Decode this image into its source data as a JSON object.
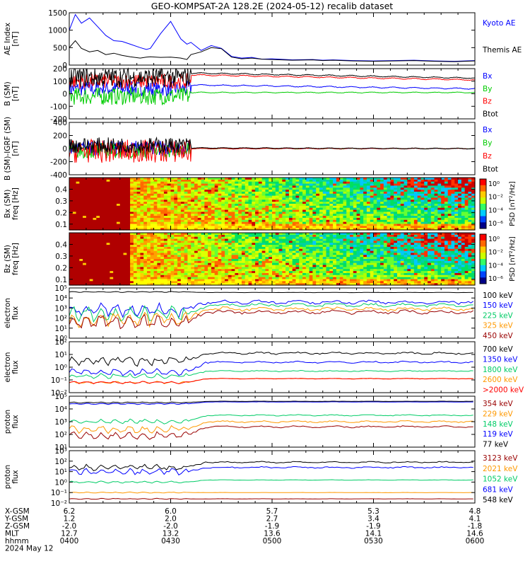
{
  "title": "GEO-KOMPSAT-2A 128.2E (2024-05-12) recalib dataset",
  "colors": {
    "black": "#000000",
    "blue": "#0000ff",
    "green": "#00cc00",
    "red": "#ff0000",
    "orange": "#ff9900",
    "darkred": "#990000",
    "seagreen": "#00cc66",
    "cyan": "#00aaff"
  },
  "chart_data": [
    {
      "type": "line",
      "id": "ae",
      "ylabel": [
        "AE Index",
        "[nT]"
      ],
      "ylim": [
        0,
        1500
      ],
      "ticks": [
        0,
        500,
        1000,
        1500
      ],
      "tick_labels": [
        "0",
        "500",
        "1000",
        "1500"
      ],
      "series": [
        {
          "name": "Kyoto AE",
          "color": "blue",
          "x": [
            0,
            3,
            6,
            10,
            14,
            18,
            22,
            26,
            30,
            35,
            38,
            40,
            45,
            50,
            55,
            58,
            60,
            65,
            70,
            75,
            80,
            85,
            90,
            95,
            100,
            110,
            120,
            125,
            130,
            140,
            150,
            160,
            170,
            180,
            190,
            200
          ],
          "y": [
            1000,
            1450,
            1200,
            1350,
            1100,
            850,
            700,
            680,
            600,
            500,
            450,
            480,
            900,
            1250,
            750,
            600,
            650,
            420,
            560,
            480,
            250,
            200,
            220,
            170,
            180,
            150,
            160,
            140,
            150,
            130,
            120,
            130,
            140,
            120,
            110,
            130
          ]
        },
        {
          "name": "Themis AE",
          "color": "black",
          "x": [
            0,
            3,
            6,
            10,
            14,
            18,
            22,
            26,
            30,
            35,
            38,
            40,
            45,
            50,
            55,
            58,
            60,
            65,
            70,
            75,
            80,
            85,
            90,
            95,
            100,
            110,
            120,
            125,
            130,
            140,
            150,
            160,
            170,
            180,
            190,
            200
          ],
          "y": [
            500,
            700,
            480,
            380,
            420,
            300,
            340,
            280,
            240,
            200,
            230,
            240,
            220,
            230,
            200,
            160,
            300,
            380,
            500,
            470,
            230,
            180,
            200,
            170,
            160,
            140,
            150,
            130,
            140,
            120,
            110,
            120,
            130,
            110,
            100,
            120
          ]
        }
      ],
      "legend_labels": [
        "Kyoto AE",
        "Themis AE"
      ]
    },
    {
      "type": "line",
      "id": "b_sm",
      "ylabel": [
        "B (SM)",
        "[nT]"
      ],
      "ylim": [
        -200,
        200
      ],
      "ticks": [
        -200,
        -100,
        0,
        100,
        200
      ],
      "tick_labels": [
        "-200",
        "-100",
        "0",
        "100",
        "200"
      ],
      "series": [
        {
          "name": "Bx",
          "color": "blue",
          "base_active": 40,
          "amp_active": 60,
          "base_quiet": 70,
          "end_quiet": 40,
          "noise_quiet": 4
        },
        {
          "name": "By",
          "color": "green",
          "base_active": -20,
          "amp_active": 70,
          "base_quiet": 10,
          "end_quiet": 10,
          "noise_quiet": 3
        },
        {
          "name": "Bz",
          "color": "red",
          "base_active": 100,
          "amp_active": 60,
          "base_quiet": 150,
          "end_quiet": 110,
          "noise_quiet": 4
        },
        {
          "name": "Btot",
          "color": "black",
          "base_active": 130,
          "amp_active": 80,
          "base_quiet": 165,
          "end_quiet": 125,
          "noise_quiet": 4
        }
      ],
      "legend_labels": [
        "Bx",
        "By",
        "Bz",
        "Btot"
      ]
    },
    {
      "type": "line",
      "id": "b_minus_igrf",
      "ylabel": [
        "B (SM)-IGRF (SM)",
        "[nT]"
      ],
      "ylim": [
        -400,
        400
      ],
      "ticks": [
        -400,
        -200,
        0,
        200,
        400
      ],
      "tick_labels": [
        "-400",
        "-200",
        "0",
        "200",
        "400"
      ],
      "series": [
        {
          "name": "Bx",
          "color": "blue",
          "base_active": 0,
          "amp_active": 120,
          "base_quiet": 0,
          "end_quiet": 0,
          "noise_quiet": 5
        },
        {
          "name": "By",
          "color": "green",
          "base_active": -30,
          "amp_active": 120,
          "base_quiet": 0,
          "end_quiet": 0,
          "noise_quiet": 5
        },
        {
          "name": "Bz",
          "color": "red",
          "base_active": -40,
          "amp_active": 180,
          "base_quiet": 0,
          "end_quiet": 0,
          "noise_quiet": 5
        },
        {
          "name": "Btot",
          "color": "black",
          "base_active": 50,
          "amp_active": 120,
          "base_quiet": 10,
          "end_quiet": 0,
          "noise_quiet": 5
        }
      ],
      "legend_labels": [
        "Bx",
        "By",
        "Bz",
        "Btot"
      ]
    },
    {
      "type": "heatmap",
      "id": "bx_psd",
      "ylabel": [
        "Bx (SM)",
        "freq [Hz]"
      ],
      "ylim": [
        0.05,
        0.5
      ],
      "ticks": [
        0.1,
        0.2,
        0.3,
        0.4
      ],
      "tick_labels": [
        "0.1",
        "0.2",
        "0.3",
        "0.4"
      ],
      "colorbar_label": "PSD [nT²/Hz]",
      "colorbar_ticks": [
        "10⁰",
        "10⁻²",
        "10⁻⁴",
        "10⁻⁶"
      ],
      "saturated_until": 30
    },
    {
      "type": "heatmap",
      "id": "bz_psd",
      "ylabel": [
        "Bz (SM)",
        "freq [Hz]"
      ],
      "ylim": [
        0.05,
        0.5
      ],
      "ticks": [
        0.1,
        0.2,
        0.3,
        0.4
      ],
      "tick_labels": [
        "0.1",
        "0.2",
        "0.3",
        "0.4"
      ],
      "colorbar_label": "PSD [nT²/Hz]",
      "colorbar_ticks": [
        "10⁰",
        "10⁻²",
        "10⁻⁴",
        "10⁻⁶"
      ],
      "saturated_until": 30
    },
    {
      "type": "line",
      "id": "electron_low",
      "ylabel": [
        "electron",
        "flux"
      ],
      "log": true,
      "ylim_exp": [
        0,
        5
      ],
      "tick_labels": [
        "10⁰",
        "10¹",
        "10²",
        "10³",
        "10⁴",
        "10⁵"
      ],
      "series": [
        {
          "name": "100 keV",
          "color": "black",
          "active": 4.6,
          "quiet": 4.55,
          "amp": 0.05
        },
        {
          "name": "150 keV",
          "color": "blue",
          "active": 2.8,
          "quiet": 3.6,
          "amp": 0.8
        },
        {
          "name": "225 keV",
          "color": "seagreen",
          "active": 2.4,
          "quiet": 3.3,
          "amp": 0.8
        },
        {
          "name": "325 keV",
          "color": "orange",
          "active": 1.9,
          "quiet": 2.9,
          "amp": 0.8
        },
        {
          "name": "450 keV",
          "color": "darkred",
          "active": 1.6,
          "quiet": 2.6,
          "amp": 0.8
        }
      ],
      "legend_labels": [
        "100 keV",
        "150 keV",
        "225 keV",
        "325 keV",
        "450 keV"
      ]
    },
    {
      "type": "line",
      "id": "electron_high",
      "ylabel": [
        "electron",
        "flux"
      ],
      "log": true,
      "ylim_exp": [
        -2,
        2
      ],
      "tick_labels": [
        "10⁻²",
        "10⁻¹",
        "10⁰",
        "10¹",
        "10²"
      ],
      "series": [
        {
          "name": "700 keV",
          "color": "black",
          "active": 0.5,
          "quiet": 1.1,
          "amp": 0.4
        },
        {
          "name": "1350 keV",
          "color": "blue",
          "active": -0.4,
          "quiet": 0.4,
          "amp": 0.3
        },
        {
          "name": "1800 keV",
          "color": "seagreen",
          "active": -0.7,
          "quiet": -0.3,
          "amp": 0.2
        },
        {
          "name": "2600 keV",
          "color": "orange",
          "active": -1.2,
          "quiet": -0.9,
          "amp": 0.1
        },
        {
          "name": ">2000 keV",
          "color": "red",
          "active": -1.2,
          "quiet": -0.9,
          "amp": 0.1
        }
      ],
      "legend_labels": [
        "700 keV",
        "1350 keV",
        "1800 keV",
        "2600 keV",
        ">2000 keV"
      ]
    },
    {
      "type": "line",
      "id": "proton_low",
      "ylabel": [
        "proton",
        "flux"
      ],
      "log": true,
      "ylim_exp": [
        1,
        5
      ],
      "tick_labels": [
        "10¹",
        "10²",
        "10³",
        "10⁴",
        "10⁵"
      ],
      "series": [
        {
          "name": "354 keV",
          "color": "darkred",
          "active": 1.9,
          "quiet": 2.6,
          "amp": 0.3
        },
        {
          "name": "229 keV",
          "color": "orange",
          "active": 2.4,
          "quiet": 3.0,
          "amp": 0.3
        },
        {
          "name": "148 keV",
          "color": "seagreen",
          "active": 3.0,
          "quiet": 3.5,
          "amp": 0.2
        },
        {
          "name": "119 keV",
          "color": "blue",
          "active": 4.4,
          "quiet": 4.55,
          "amp": 0.05
        },
        {
          "name": "77 keV",
          "color": "black",
          "active": 4.5,
          "quiet": 4.6,
          "amp": 0.05
        }
      ],
      "legend_labels": [
        "354 keV",
        "229 keV",
        "148 keV",
        "119 keV",
        "77 keV"
      ]
    },
    {
      "type": "line",
      "id": "proton_high",
      "ylabel": [
        "proton",
        "flux"
      ],
      "log": true,
      "ylim_exp": [
        -2,
        3
      ],
      "tick_labels": [
        "10⁻²",
        "10⁻¹",
        "10⁰",
        "10¹",
        "10²",
        "10³"
      ],
      "series": [
        {
          "name": "3123 keV",
          "color": "darkred",
          "active": -1.6,
          "quiet": -1.6,
          "amp": 0.05
        },
        {
          "name": "2021 keV",
          "color": "orange",
          "active": -1.0,
          "quiet": -1.0,
          "amp": 0.05
        },
        {
          "name": "1052 keV",
          "color": "seagreen",
          "active": 0.0,
          "quiet": 0.2,
          "amp": 0.1
        },
        {
          "name": "681 keV",
          "color": "blue",
          "active": 1.0,
          "quiet": 1.4,
          "amp": 0.3
        },
        {
          "name": "548 keV",
          "color": "black",
          "active": 1.4,
          "quiet": 1.9,
          "amp": 0.3
        }
      ],
      "legend_labels": [
        "3123 keV",
        "2021 keV",
        "1052 keV",
        "681 keV",
        "548 keV"
      ]
    }
  ],
  "x_axis": {
    "tick_count": 5,
    "rows": [
      {
        "label": "X-GSM",
        "values": [
          "6.2",
          "6.0",
          "5.7",
          "5.3",
          "4.8"
        ]
      },
      {
        "label": "Y-GSM",
        "values": [
          "1.2",
          "2.0",
          "2.7",
          "3.4",
          "4.1"
        ]
      },
      {
        "label": "Z-GSM",
        "values": [
          "-2.0",
          "-2.0",
          "-1.9",
          "-1.9",
          "-1.8"
        ]
      },
      {
        "label": "MLT",
        "values": [
          "12.7",
          "13.2",
          "13.6",
          "14.1",
          "14.6"
        ]
      },
      {
        "label": "hhmm",
        "values": [
          "0400",
          "0430",
          "0500",
          "0530",
          "0600"
        ]
      }
    ],
    "date": "2024 May 12"
  }
}
